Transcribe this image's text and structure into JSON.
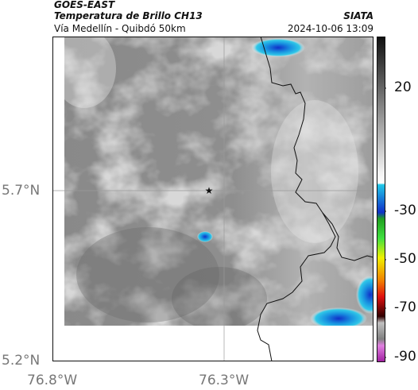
{
  "header": {
    "satellite": "GOES-EAST",
    "product": "Temperatura de Brillo CH13",
    "region": "Vía Medellín - Quibdó 50km",
    "organization": "SIATA",
    "timestamp": "2024-10-06 13:09"
  },
  "axes": {
    "y_ticks": [
      {
        "value": 5.7,
        "label": "5.7°N"
      },
      {
        "value": 5.2,
        "label": "5.2°N"
      }
    ],
    "x_ticks": [
      {
        "value": -76.8,
        "label": "76.8°W"
      },
      {
        "value": -76.3,
        "label": "76.3°W"
      }
    ]
  },
  "colorbar": {
    "ticks": [
      {
        "value": 20,
        "label": "20"
      },
      {
        "value": -30,
        "label": "-30"
      },
      {
        "value": -50,
        "label": "-50"
      },
      {
        "value": -70,
        "label": "-70"
      },
      {
        "value": -90,
        "label": "-90"
      }
    ],
    "colors": {
      "warm": "#101010",
      "neutral": "#ffffff",
      "cyan": "#10b8d8",
      "blue": "#1020c0",
      "green": "#20c020",
      "yellow": "#f0f000",
      "red": "#e01010",
      "magenta": "#c040c0"
    }
  },
  "marker": {
    "name": "star-marker",
    "glyph": "★"
  }
}
